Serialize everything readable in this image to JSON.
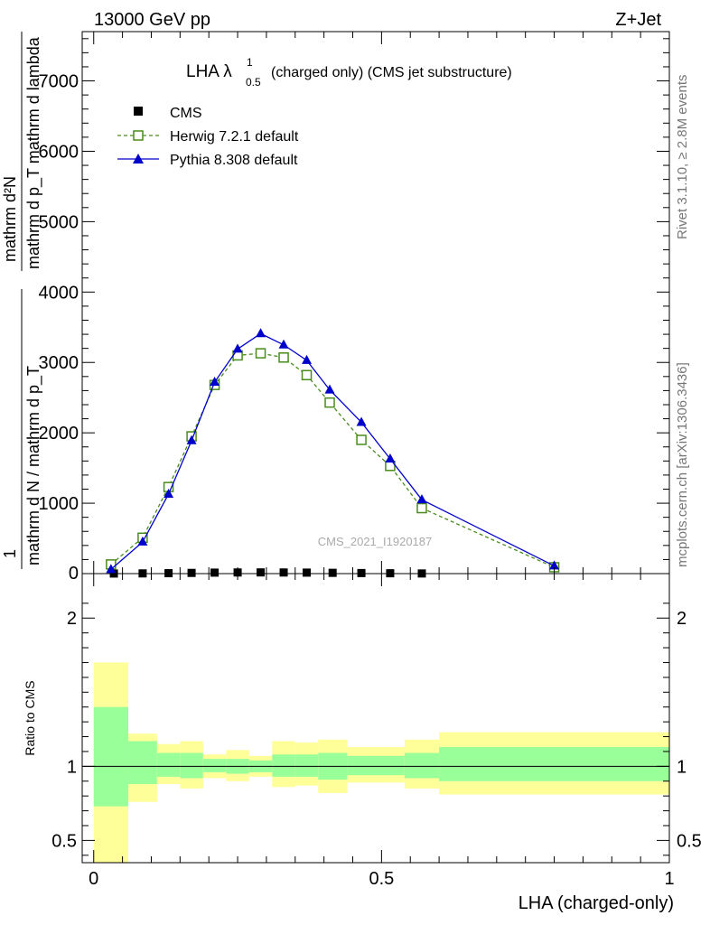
{
  "header": {
    "energy_label": "13000 GeV pp",
    "process_label": "Z+Jet"
  },
  "side_labels": {
    "rivet": "Rivet 3.1.10, ≥ 2.8M events",
    "mcplots": "mcplots.cern.ch [arXiv:1306.3436]"
  },
  "watermark": "CMS_2021_I1920187",
  "chart_data": [
    {
      "type": "line",
      "title": "LHA λ",
      "title_superscript": "1",
      "title_subscript": "0.5",
      "title_suffix": "(charged only) (CMS jet substructure)",
      "ylabel_numerator": "mathrm d²N",
      "ylabel_denominator": "mathrm d p",
      "ylabel_full_line1": "mathrm d²N",
      "ylabel_full_line2": "mathrm d p_T mathrm d lambda",
      "ylabel_prefix_line1": "1",
      "ylabel_prefix_line2": "mathrm d N / mathrm d p_T",
      "ylim": [
        0,
        7700
      ],
      "xlim": [
        -0.02,
        1.0
      ],
      "yticks": [
        1000,
        2000,
        3000,
        4000,
        5000,
        6000,
        7000
      ],
      "ytick_labels": [
        "1000",
        "2000",
        "3000",
        "4000",
        "5000",
        "6000",
        "7000"
      ],
      "ytick_zero_label": "0",
      "legend_position": "top-left",
      "series": [
        {
          "name": "CMS",
          "color": "#000000",
          "marker": "square-filled",
          "x": [
            0.035,
            0.085,
            0.13,
            0.17,
            0.21,
            0.25,
            0.29,
            0.33,
            0.37,
            0.415,
            0.465,
            0.515,
            0.57
          ],
          "y": [
            1,
            3,
            6,
            10,
            14,
            16,
            17,
            16,
            14,
            11,
            8,
            5,
            2
          ]
        },
        {
          "name": "Herwig 7.2.1 default",
          "color": "#4a8c1c",
          "marker": "square-open",
          "dashed": true,
          "x": [
            0.03,
            0.085,
            0.13,
            0.17,
            0.21,
            0.25,
            0.29,
            0.33,
            0.37,
            0.41,
            0.465,
            0.515,
            0.57,
            0.8
          ],
          "y": [
            130,
            510,
            1230,
            1950,
            2680,
            3100,
            3130,
            3070,
            2820,
            2430,
            1900,
            1530,
            930,
            90
          ]
        },
        {
          "name": "Pythia 8.308 default",
          "color": "#0000cc",
          "marker": "triangle-filled",
          "dashed": false,
          "x": [
            0.03,
            0.085,
            0.13,
            0.17,
            0.21,
            0.25,
            0.29,
            0.33,
            0.37,
            0.41,
            0.465,
            0.515,
            0.57,
            0.8
          ],
          "y": [
            60,
            450,
            1130,
            1890,
            2720,
            3190,
            3410,
            3250,
            3030,
            2610,
            2150,
            1630,
            1050,
            110
          ]
        }
      ]
    },
    {
      "type": "area",
      "ylabel": "Ratio to CMS",
      "xlabel": "LHA (charged-only)",
      "ylim": [
        0.35,
        2.3
      ],
      "xlim": [
        -0.02,
        1.0
      ],
      "yticks": [
        0.5,
        1,
        2
      ],
      "ytick_labels": [
        "0.5",
        "1",
        "2"
      ],
      "xticks": [
        0,
        0.5,
        1
      ],
      "xtick_labels": [
        "0",
        "0.5",
        "1"
      ],
      "reference_line": 1,
      "bins": [
        {
          "x0": 0.0,
          "x1": 0.06,
          "yellow": [
            0.35,
            1.7
          ],
          "green": [
            0.73,
            1.4
          ]
        },
        {
          "x0": 0.06,
          "x1": 0.11,
          "yellow": [
            0.76,
            1.22
          ],
          "green": [
            0.88,
            1.17
          ]
        },
        {
          "x0": 0.11,
          "x1": 0.15,
          "yellow": [
            0.88,
            1.15
          ],
          "green": [
            0.93,
            1.09
          ]
        },
        {
          "x0": 0.15,
          "x1": 0.19,
          "yellow": [
            0.85,
            1.17
          ],
          "green": [
            0.92,
            1.09
          ]
        },
        {
          "x0": 0.19,
          "x1": 0.23,
          "yellow": [
            0.92,
            1.08
          ],
          "green": [
            0.96,
            1.05
          ]
        },
        {
          "x0": 0.23,
          "x1": 0.27,
          "yellow": [
            0.9,
            1.11
          ],
          "green": [
            0.95,
            1.05
          ]
        },
        {
          "x0": 0.27,
          "x1": 0.31,
          "yellow": [
            0.93,
            1.07
          ],
          "green": [
            0.96,
            1.04
          ]
        },
        {
          "x0": 0.31,
          "x1": 0.35,
          "yellow": [
            0.86,
            1.17
          ],
          "green": [
            0.93,
            1.08
          ]
        },
        {
          "x0": 0.35,
          "x1": 0.39,
          "yellow": [
            0.87,
            1.16
          ],
          "green": [
            0.93,
            1.08
          ]
        },
        {
          "x0": 0.39,
          "x1": 0.44,
          "yellow": [
            0.82,
            1.18
          ],
          "green": [
            0.91,
            1.09
          ]
        },
        {
          "x0": 0.44,
          "x1": 0.49,
          "yellow": [
            0.89,
            1.13
          ],
          "green": [
            0.94,
            1.07
          ]
        },
        {
          "x0": 0.49,
          "x1": 0.54,
          "yellow": [
            0.89,
            1.13
          ],
          "green": [
            0.94,
            1.07
          ]
        },
        {
          "x0": 0.54,
          "x1": 0.6,
          "yellow": [
            0.85,
            1.18
          ],
          "green": [
            0.92,
            1.09
          ]
        },
        {
          "x0": 0.6,
          "x1": 1.0,
          "yellow": [
            0.81,
            1.23
          ],
          "green": [
            0.9,
            1.13
          ]
        }
      ]
    }
  ],
  "colors": {
    "yellow_band": "#ffff99",
    "green_band": "#99ff99",
    "herwig": "#4a8c1c",
    "pythia": "#0000cc"
  }
}
